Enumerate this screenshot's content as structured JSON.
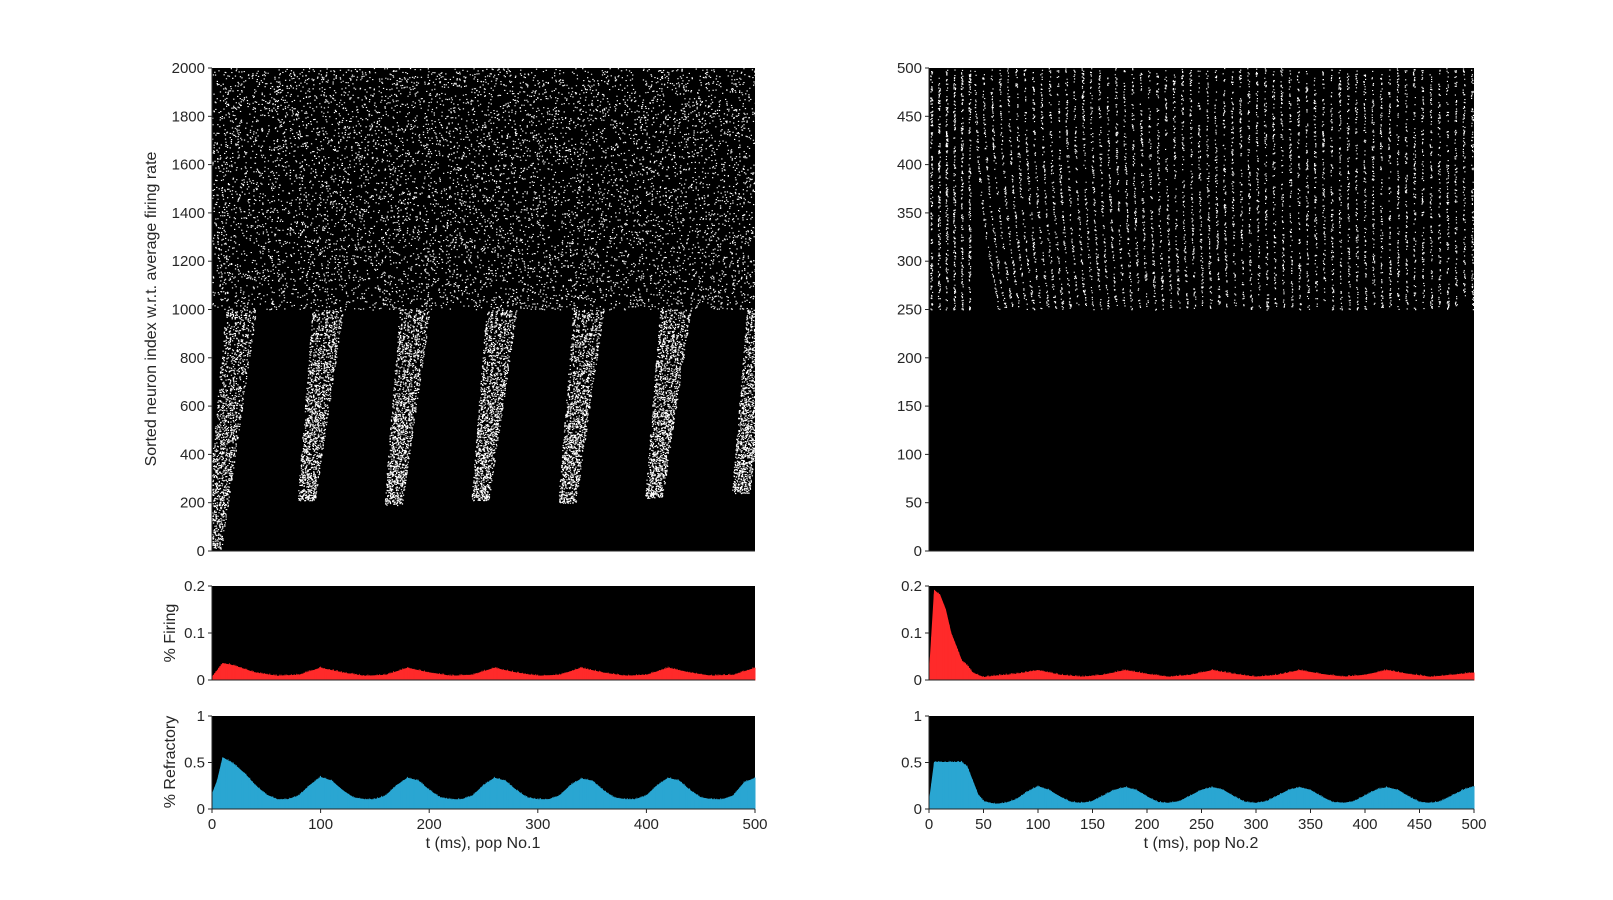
{
  "figure": {
    "background": "#ffffff",
    "panel_background": "#000000",
    "raster_color": "#ffffff",
    "firing_color": "#ff2a2a",
    "refractory_color": "#2aa6d2"
  },
  "chart_data": [
    {
      "id": "pop1-raster",
      "type": "scatter",
      "title": "",
      "xlabel": "",
      "ylabel": "Sorted neuron index w.r.t. average firing rate",
      "xlim": [
        0,
        500
      ],
      "ylim": [
        0,
        2000
      ],
      "yticks": [
        0,
        200,
        400,
        600,
        800,
        1000,
        1200,
        1400,
        1600,
        1800,
        2000
      ],
      "xticks_labeled": false,
      "grid": false,
      "n_neurons": 2000,
      "high_rate_block": [
        1000,
        2000
      ],
      "wave_period_ms": 80,
      "wave_onsets_ms": [
        0,
        80,
        160,
        240,
        320,
        400,
        480
      ],
      "wave_bottom_index": [
        10,
        210,
        190,
        210,
        200,
        220,
        240
      ],
      "marker_color": "#ffffff"
    },
    {
      "id": "pop1-firing",
      "type": "area",
      "title": "",
      "xlabel": "",
      "ylabel": "% Firing",
      "xlim": [
        0,
        500
      ],
      "ylim": [
        0,
        0.2
      ],
      "yticks": [
        0,
        0.1,
        0.2
      ],
      "xticks_labeled": false,
      "color": "#ff2a2a",
      "x": [
        0,
        10,
        20,
        40,
        60,
        80,
        100,
        120,
        140,
        160,
        180,
        200,
        220,
        240,
        260,
        280,
        300,
        320,
        340,
        360,
        380,
        400,
        420,
        440,
        460,
        480,
        500
      ],
      "y": [
        0.005,
        0.035,
        0.03,
        0.015,
        0.008,
        0.01,
        0.025,
        0.015,
        0.008,
        0.01,
        0.025,
        0.015,
        0.008,
        0.01,
        0.025,
        0.015,
        0.008,
        0.01,
        0.025,
        0.015,
        0.008,
        0.01,
        0.025,
        0.015,
        0.008,
        0.01,
        0.025
      ]
    },
    {
      "id": "pop1-refractory",
      "type": "area",
      "title": "",
      "xlabel": "t (ms), pop No.1",
      "ylabel": "% Refractory",
      "xlim": [
        0,
        500
      ],
      "ylim": [
        0,
        1
      ],
      "yticks": [
        0,
        0.5,
        1
      ],
      "xticks": [
        0,
        100,
        200,
        300,
        400,
        500
      ],
      "color": "#2aa6d2",
      "x": [
        0,
        5,
        10,
        20,
        30,
        40,
        50,
        60,
        70,
        80,
        90,
        100,
        110,
        120,
        130,
        140,
        150,
        160,
        170,
        180,
        190,
        200,
        210,
        220,
        230,
        240,
        250,
        260,
        270,
        280,
        290,
        300,
        310,
        320,
        330,
        340,
        350,
        360,
        370,
        380,
        390,
        400,
        410,
        420,
        430,
        440,
        450,
        460,
        470,
        480,
        490,
        500
      ],
      "y": [
        0.15,
        0.3,
        0.55,
        0.48,
        0.38,
        0.25,
        0.15,
        0.1,
        0.1,
        0.14,
        0.25,
        0.34,
        0.3,
        0.2,
        0.12,
        0.1,
        0.1,
        0.14,
        0.25,
        0.33,
        0.3,
        0.2,
        0.12,
        0.1,
        0.1,
        0.14,
        0.25,
        0.33,
        0.3,
        0.2,
        0.12,
        0.1,
        0.1,
        0.14,
        0.25,
        0.32,
        0.3,
        0.2,
        0.12,
        0.1,
        0.1,
        0.14,
        0.25,
        0.33,
        0.3,
        0.2,
        0.12,
        0.1,
        0.1,
        0.14,
        0.28,
        0.33
      ]
    },
    {
      "id": "pop2-raster",
      "type": "scatter",
      "title": "",
      "xlabel": "",
      "ylabel": "",
      "xlim": [
        0,
        500
      ],
      "ylim": [
        0,
        500
      ],
      "yticks": [
        0,
        50,
        100,
        150,
        200,
        250,
        300,
        350,
        400,
        450,
        500
      ],
      "xticks_labeled": false,
      "grid": false,
      "n_neurons": 500,
      "active_block": [
        250,
        500
      ],
      "marker_color": "#ffffff"
    },
    {
      "id": "pop2-firing",
      "type": "area",
      "title": "",
      "xlabel": "",
      "ylabel": "",
      "xlim": [
        0,
        500
      ],
      "ylim": [
        0,
        0.2
      ],
      "yticks": [
        0,
        0.1,
        0.2
      ],
      "xticks_labeled": false,
      "color": "#ff2a2a",
      "x": [
        0,
        5,
        10,
        15,
        20,
        25,
        30,
        35,
        40,
        45,
        50,
        60,
        80,
        100,
        120,
        140,
        160,
        180,
        200,
        220,
        240,
        260,
        280,
        300,
        320,
        340,
        360,
        380,
        400,
        420,
        440,
        460,
        480,
        500
      ],
      "y": [
        0.0,
        0.19,
        0.18,
        0.15,
        0.1,
        0.07,
        0.04,
        0.03,
        0.015,
        0.01,
        0.005,
        0.008,
        0.012,
        0.02,
        0.01,
        0.006,
        0.01,
        0.02,
        0.012,
        0.006,
        0.01,
        0.02,
        0.012,
        0.006,
        0.01,
        0.02,
        0.012,
        0.006,
        0.01,
        0.02,
        0.012,
        0.006,
        0.01,
        0.015
      ]
    },
    {
      "id": "pop2-refractory",
      "type": "area",
      "title": "",
      "xlabel": "t (ms), pop No.2",
      "ylabel": "",
      "xlim": [
        0,
        500
      ],
      "ylim": [
        0,
        1
      ],
      "yticks": [
        0,
        0.5,
        1
      ],
      "xticks": [
        0,
        50,
        100,
        150,
        200,
        250,
        300,
        350,
        400,
        450,
        500
      ],
      "color": "#2aa6d2",
      "x": [
        0,
        5,
        10,
        20,
        30,
        35,
        40,
        45,
        50,
        60,
        70,
        80,
        90,
        100,
        110,
        120,
        130,
        140,
        150,
        160,
        170,
        180,
        190,
        200,
        210,
        220,
        230,
        240,
        250,
        260,
        270,
        280,
        290,
        300,
        310,
        320,
        330,
        340,
        350,
        360,
        370,
        380,
        390,
        400,
        410,
        420,
        430,
        440,
        450,
        460,
        470,
        480,
        490,
        500
      ],
      "y": [
        0.05,
        0.5,
        0.5,
        0.5,
        0.5,
        0.45,
        0.3,
        0.15,
        0.08,
        0.05,
        0.06,
        0.1,
        0.18,
        0.24,
        0.2,
        0.13,
        0.07,
        0.06,
        0.08,
        0.14,
        0.2,
        0.23,
        0.2,
        0.13,
        0.07,
        0.06,
        0.08,
        0.14,
        0.2,
        0.23,
        0.2,
        0.13,
        0.07,
        0.06,
        0.08,
        0.14,
        0.2,
        0.23,
        0.2,
        0.13,
        0.07,
        0.06,
        0.08,
        0.14,
        0.2,
        0.23,
        0.2,
        0.13,
        0.07,
        0.06,
        0.08,
        0.14,
        0.2,
        0.24
      ]
    }
  ]
}
